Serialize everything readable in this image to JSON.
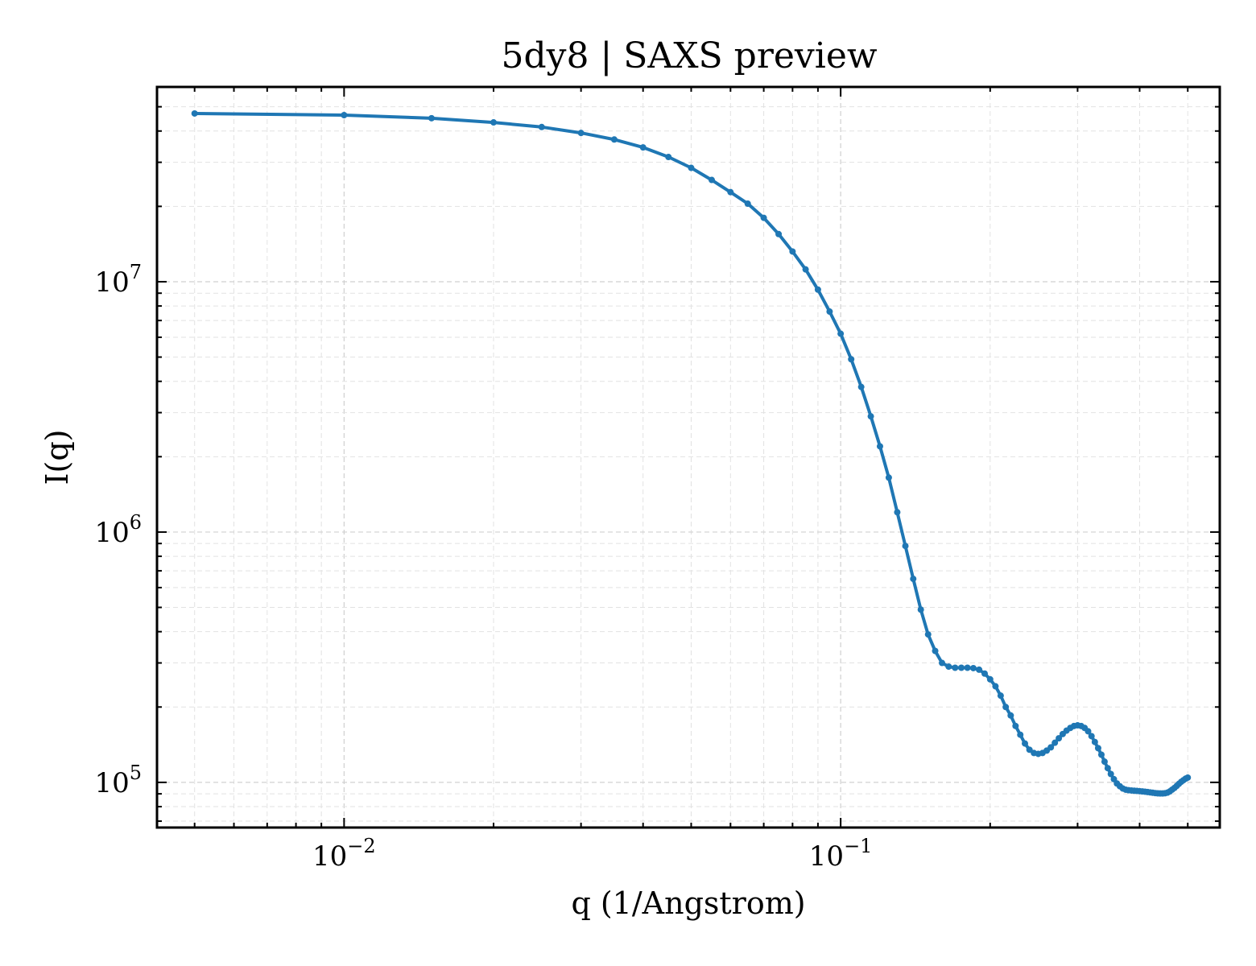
{
  "chart_data": {
    "type": "line",
    "title": "5dy8 | SAXS preview",
    "xlabel": "q (1/Angstrom)",
    "ylabel": "I(q)",
    "xscale": "log",
    "yscale": "log",
    "xlim": [
      0.0042,
      0.58
    ],
    "ylim": [
      66000,
      60000000
    ],
    "grid": true,
    "x_ticks": [
      {
        "base": "10",
        "exp": "−2",
        "value": 0.01
      },
      {
        "base": "10",
        "exp": "−1",
        "value": 0.1
      }
    ],
    "y_ticks": [
      {
        "base": "10",
        "exp": "5",
        "value": 100000
      },
      {
        "base": "10",
        "exp": "6",
        "value": 1000000
      },
      {
        "base": "10",
        "exp": "7",
        "value": 10000000
      }
    ],
    "color": "#1f77b4",
    "series": [
      {
        "x": [
          0.005,
          0.01,
          0.015,
          0.02,
          0.025,
          0.03,
          0.035,
          0.04,
          0.045,
          0.05,
          0.055,
          0.06,
          0.065,
          0.07,
          0.075,
          0.08,
          0.085,
          0.09,
          0.095,
          0.1,
          0.105,
          0.11,
          0.115,
          0.12,
          0.125,
          0.13,
          0.135,
          0.14,
          0.145,
          0.15,
          0.155,
          0.16,
          0.165,
          0.17,
          0.175,
          0.18,
          0.185,
          0.19,
          0.195,
          0.2,
          0.205,
          0.21,
          0.215,
          0.22,
          0.225,
          0.23,
          0.235,
          0.24,
          0.245,
          0.25,
          0.255,
          0.26,
          0.265,
          0.27,
          0.275,
          0.28,
          0.285,
          0.29,
          0.295,
          0.3,
          0.305,
          0.31,
          0.315,
          0.32,
          0.325,
          0.33,
          0.335,
          0.34,
          0.345,
          0.35,
          0.355,
          0.36,
          0.365,
          0.37,
          0.375,
          0.38,
          0.385,
          0.39,
          0.395,
          0.4,
          0.405,
          0.41,
          0.415,
          0.42,
          0.425,
          0.43,
          0.435,
          0.44,
          0.445,
          0.45,
          0.455,
          0.46,
          0.465,
          0.47,
          0.475,
          0.48,
          0.485,
          0.49,
          0.495,
          0.5
        ],
        "y": [
          47000000,
          46300000,
          45000000,
          43300000,
          41500000,
          39300000,
          37000000,
          34400000,
          31500000,
          28500000,
          25500000,
          22800000,
          20500000,
          18000000,
          15500000,
          13200000,
          11200000,
          9300000,
          7600000,
          6200000,
          4900000,
          3800000,
          2900000,
          2200000,
          1650000,
          1200000,
          880000,
          650000,
          490000,
          390000,
          335000,
          300000,
          290000,
          287000,
          287000,
          287000,
          286000,
          282000,
          272000,
          258000,
          242000,
          222000,
          200000,
          185000,
          168000,
          155000,
          143000,
          135000,
          131000,
          130000,
          131000,
          134000,
          138000,
          144000,
          150000,
          156000,
          161000,
          165000,
          168000,
          169000,
          168000,
          165000,
          160000,
          153000,
          145000,
          137000,
          129000,
          121000,
          114000,
          108000,
          103000,
          99000,
          96500,
          94500,
          93500,
          93000,
          92800,
          92600,
          92400,
          92200,
          92000,
          91800,
          91500,
          91200,
          90900,
          90600,
          90400,
          90300,
          90300,
          90500,
          91000,
          92000,
          93500,
          95000,
          96800,
          98700,
          100500,
          102000,
          103500,
          104500
        ]
      }
    ]
  }
}
